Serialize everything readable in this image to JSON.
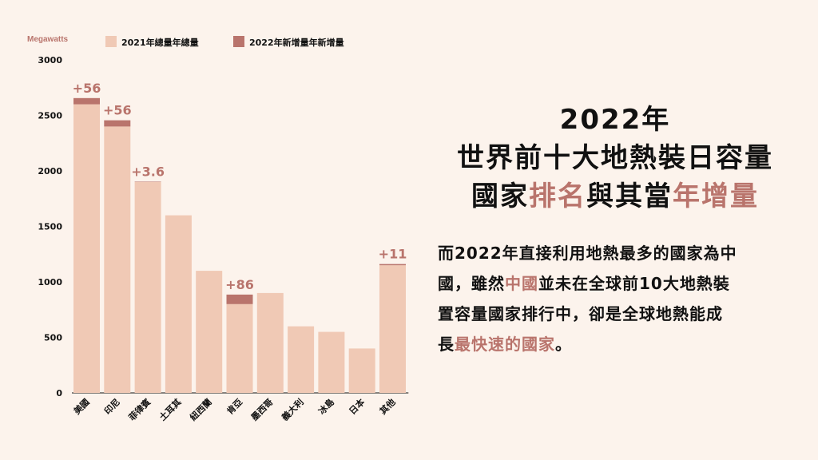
{
  "colors": {
    "background": "#fcf3ec",
    "total": "#f0c9b5",
    "added": "#b9746c",
    "accent": "#b9746c"
  },
  "chart_data": {
    "type": "bar",
    "stacked": true,
    "ylabel": "Megawatts",
    "ylim": [
      0,
      3000
    ],
    "yticks": [
      0,
      500,
      1000,
      1500,
      2000,
      2500,
      3000
    ],
    "categories": [
      "美國",
      "印尼",
      "菲律賓",
      "土耳其",
      "紐西蘭",
      "肯亞",
      "墨西哥",
      "義大利",
      "冰島",
      "日本",
      "其他"
    ],
    "series": [
      {
        "name": "2021年總量年總量",
        "values": [
          2600,
          2400,
          1900,
          1600,
          1100,
          800,
          900,
          600,
          550,
          400,
          1150
        ]
      },
      {
        "name": "2022年新增量年新增量",
        "values": [
          56,
          56,
          3.6,
          0,
          0,
          86,
          0,
          0,
          0,
          0,
          11
        ]
      }
    ],
    "annotations": [
      "+56",
      "+56",
      "+3.6",
      "",
      "",
      "+86",
      "",
      "",
      "",
      "",
      "+11"
    ],
    "legend_position": "top"
  },
  "title": {
    "line1": "2022年",
    "line2": "世界前十大地熱裝日容量",
    "line3_a": "國家",
    "line3_b": "排名",
    "line3_c": "與其當",
    "line3_d": "年增量"
  },
  "body": {
    "l1": "而2022年直接利用地熱最多的國家為中",
    "l2_a": "國，雖然",
    "l2_b": "中國",
    "l2_c": "並未在全球前10大地熱裝",
    "l3": "置容量國家排行中，卻是全球地熱能成",
    "l4_a": "長",
    "l4_b": "最快速的國家",
    "l4_c": "。"
  }
}
